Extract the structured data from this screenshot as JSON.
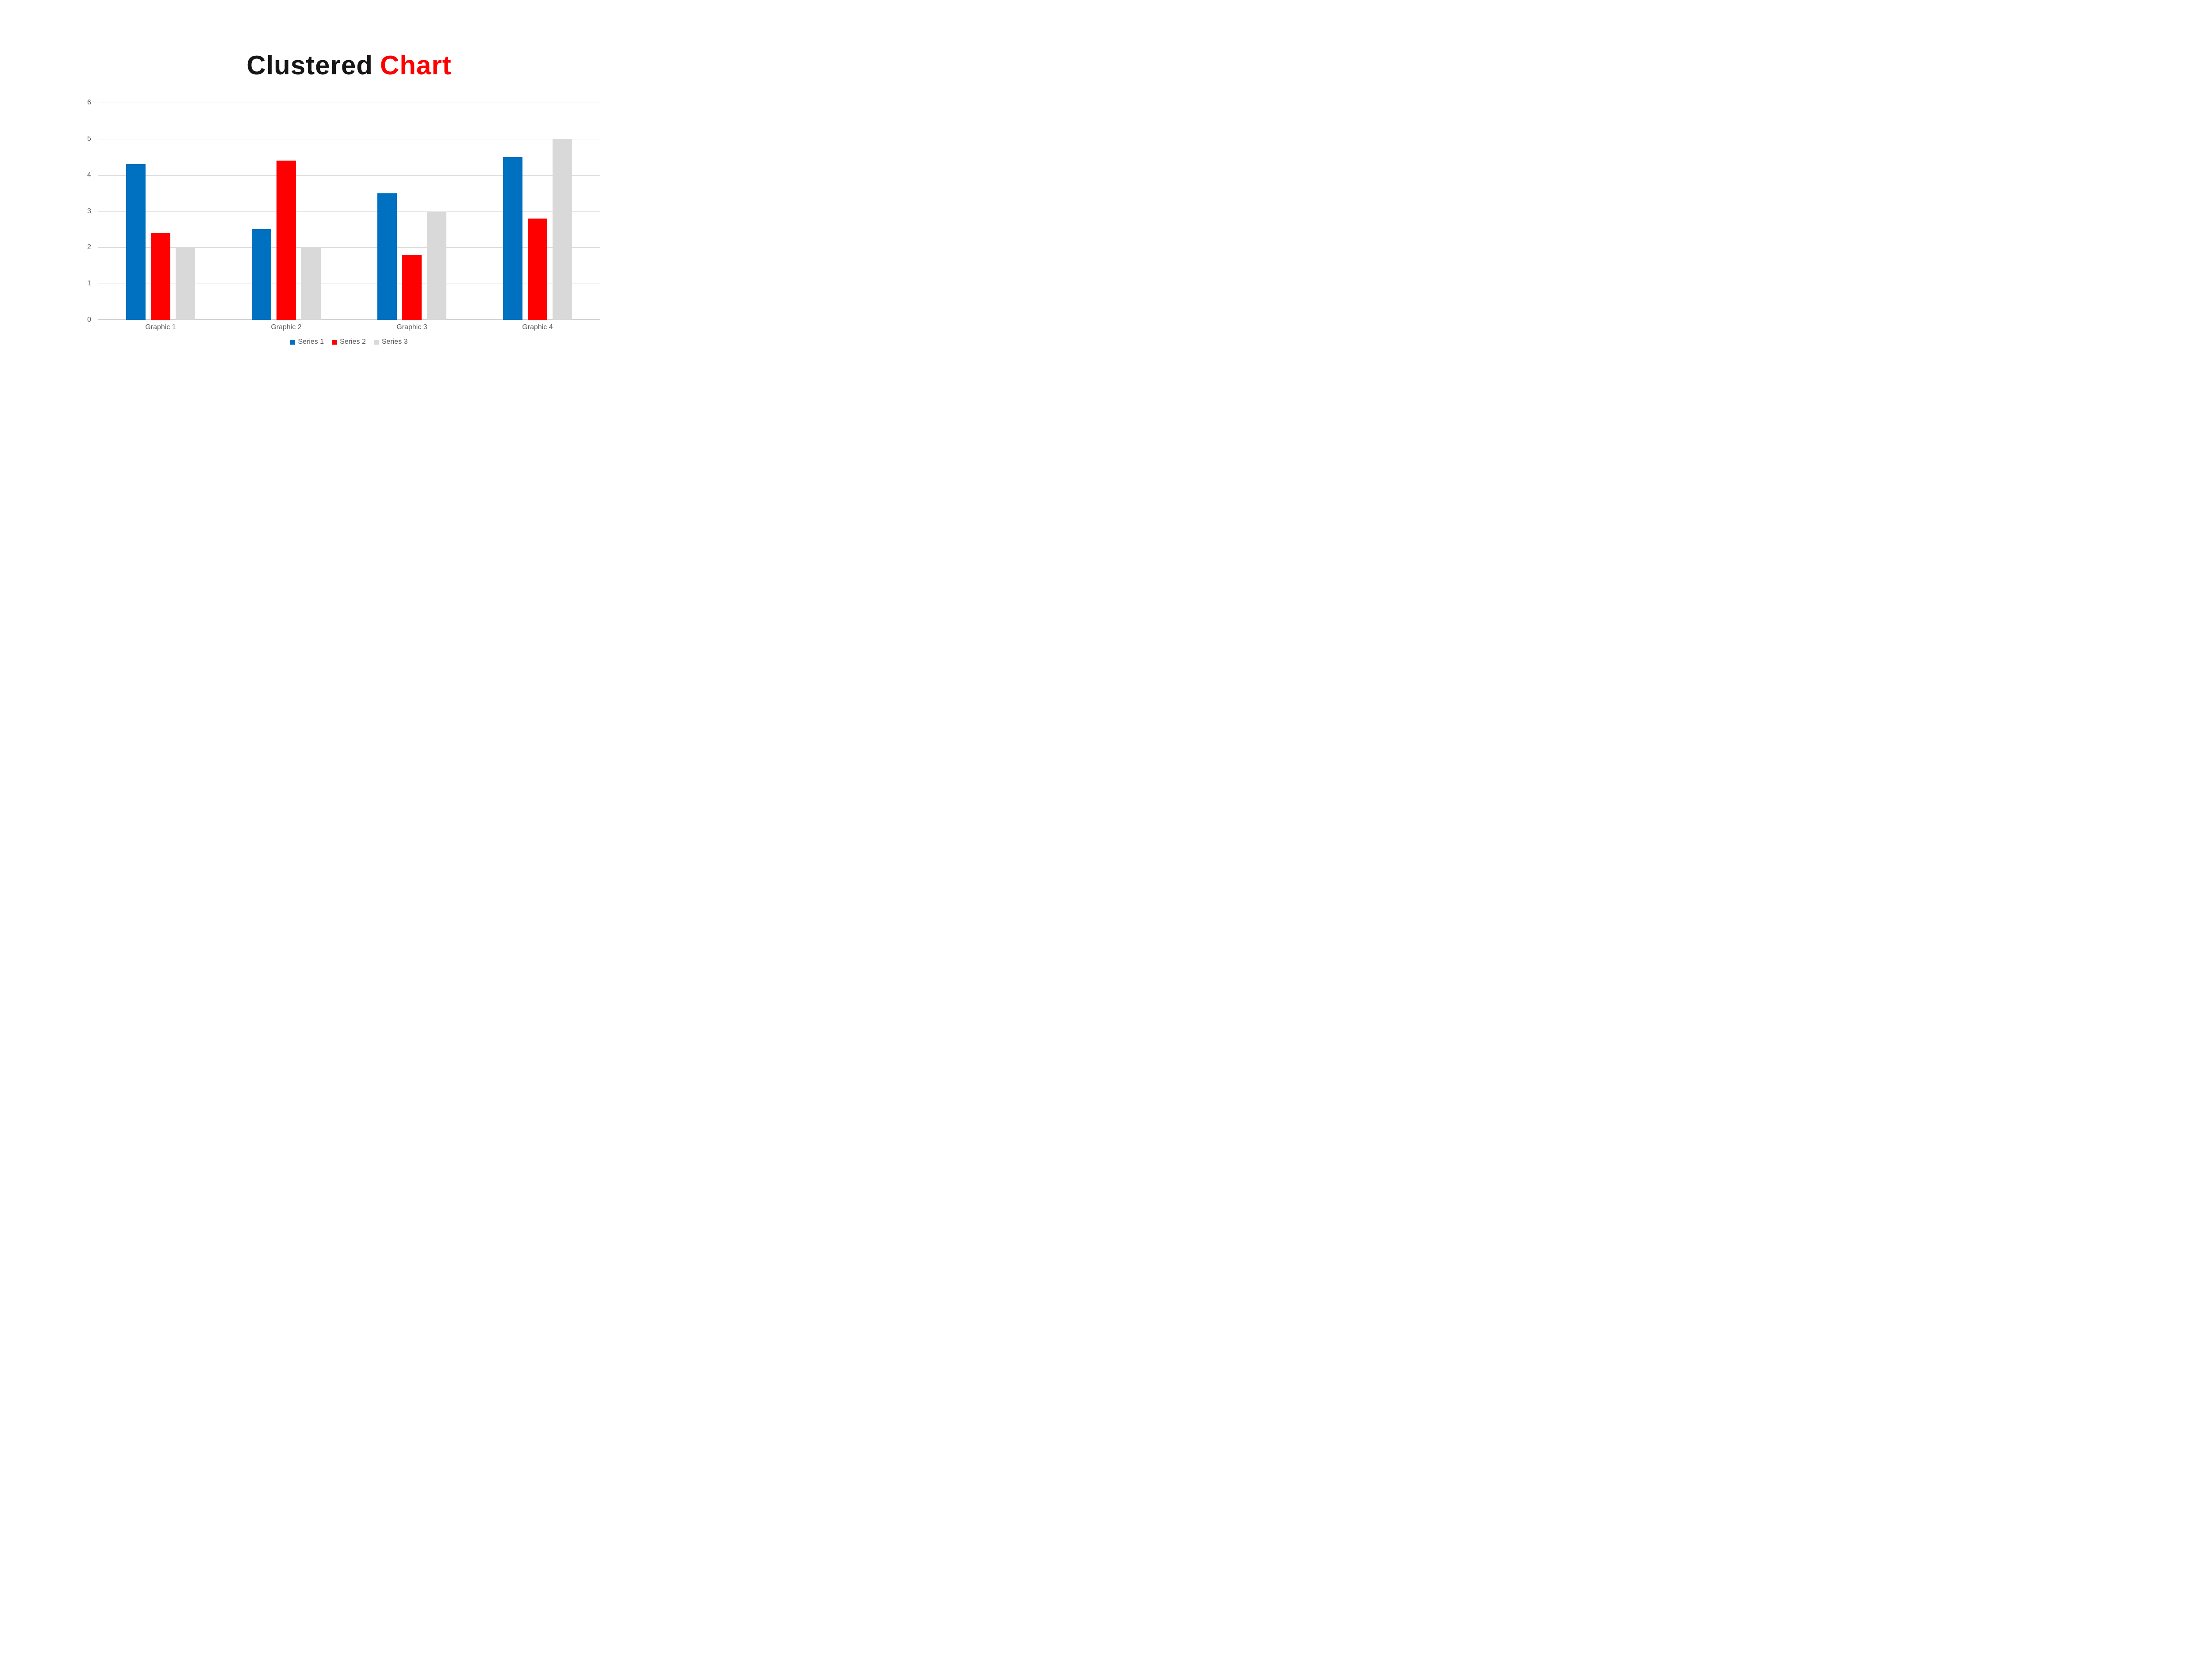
{
  "title": {
    "part1": "Clustered",
    "part2": "Chart",
    "part1_color": "#161616",
    "part2_color": "#FF0000"
  },
  "chart_data": {
    "type": "bar",
    "title": "Clustered Chart",
    "categories": [
      "Graphic 1",
      "Graphic 2",
      "Graphic 3",
      "Graphic 4"
    ],
    "series": [
      {
        "name": "Series 1",
        "color": "#0070C0",
        "values": [
          4.3,
          2.5,
          3.5,
          4.5
        ]
      },
      {
        "name": "Series 2",
        "color": "#FF0000",
        "values": [
          2.4,
          4.4,
          1.8,
          2.8
        ]
      },
      {
        "name": "Series 3",
        "color": "#D9D9D9",
        "values": [
          2.0,
          2.0,
          3.0,
          5.0
        ]
      }
    ],
    "xlabel": "",
    "ylabel": "",
    "ylim": [
      0,
      6
    ],
    "yticks": [
      0,
      1,
      2,
      3,
      4,
      5,
      6
    ],
    "grid": true,
    "legend_position": "bottom",
    "axis_text_color": "#595959",
    "gridline_color": "#D9D9D9",
    "background": "#FFFFFF"
  }
}
